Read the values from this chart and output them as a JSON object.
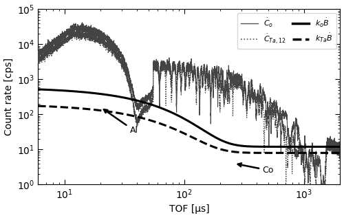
{
  "title": "",
  "xlabel": "TOF [μs]",
  "ylabel": "Count rate [cps]",
  "xlim": [
    6,
    2000
  ],
  "ylim": [
    1,
    100000.0
  ],
  "legend_entries": [
    {
      "label": "$\\dot{C}_o$",
      "ls": "solid",
      "lw": 1.0,
      "color": "#555555"
    },
    {
      "label": "$\\dot{C}_{Ta,12}$",
      "ls": "dotted",
      "lw": 1.2,
      "color": "#555555"
    },
    {
      "label": "$k_o\\dot{B}$",
      "ls": "solid",
      "lw": 2.5,
      "color": "black"
    },
    {
      "label": "$k_{Ta}\\dot{B}$",
      "ls": "dashed",
      "lw": 2.5,
      "color": "black"
    }
  ],
  "background_color": "white"
}
